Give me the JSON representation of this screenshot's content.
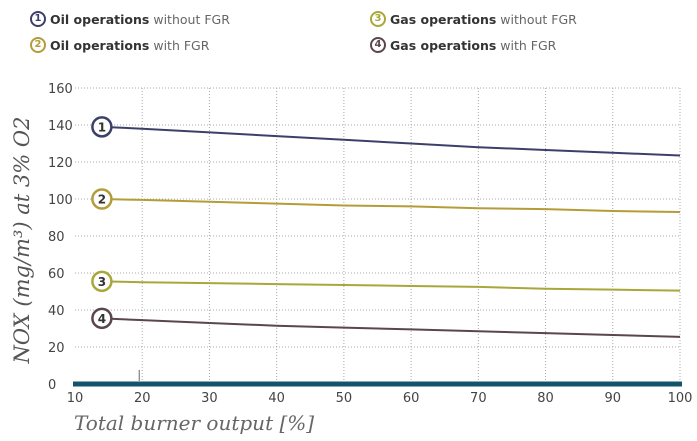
{
  "legend": {
    "items": [
      {
        "num": "1",
        "bold": "Oil operations",
        "rest": "without FGR",
        "color": "#3d3f6b"
      },
      {
        "num": "2",
        "bold": "Oil operations",
        "rest": "with FGR",
        "color": "#b59c3a"
      },
      {
        "num": "3",
        "bold": "Gas operations",
        "rest": "without FGR",
        "color": "#a9a73a"
      },
      {
        "num": "4",
        "bold": "Gas operations",
        "rest": "with FGR",
        "color": "#5a464c"
      }
    ]
  },
  "axes": {
    "ylabel": "NOX (mg/m³) at 3% O2",
    "xlabel": "Total burner output [%]"
  },
  "chart_data": {
    "type": "line",
    "title": "",
    "xlabel": "Total burner output [%]",
    "ylabel": "NOX (mg/m³) at 3% O2",
    "xlim": [
      10,
      100
    ],
    "ylim": [
      0,
      160
    ],
    "xticks": [
      "10",
      "20",
      "30",
      "40",
      "50",
      "60",
      "70",
      "80",
      "90",
      "100"
    ],
    "yticks": [
      "0",
      "20",
      "40",
      "60",
      "80",
      "100",
      "120",
      "140",
      "160"
    ],
    "grid": true,
    "legend_position": "top",
    "series": [
      {
        "name": "Oil operations without FGR",
        "label": "1",
        "color": "#3d3f6b",
        "x": [
          14,
          20,
          30,
          40,
          50,
          60,
          70,
          80,
          90,
          100
        ],
        "y": [
          139,
          138,
          136,
          134,
          132,
          130,
          128,
          126.5,
          125,
          123.5
        ]
      },
      {
        "name": "Oil operations with FGR",
        "label": "2",
        "color": "#b59c3a",
        "x": [
          14,
          20,
          30,
          40,
          50,
          60,
          70,
          80,
          90,
          100
        ],
        "y": [
          100,
          99.5,
          98.5,
          97.5,
          96.5,
          96,
          95,
          94.5,
          93.5,
          93
        ]
      },
      {
        "name": "Gas operations without FGR",
        "label": "3",
        "color": "#a9a73a",
        "x": [
          14,
          20,
          30,
          40,
          50,
          60,
          70,
          80,
          90,
          100
        ],
        "y": [
          55.5,
          55,
          54.5,
          54,
          53.5,
          53,
          52.5,
          51.5,
          51,
          50.5
        ]
      },
      {
        "name": "Gas operations with FGR",
        "label": "4",
        "color": "#5a464c",
        "x": [
          14,
          20,
          30,
          40,
          50,
          60,
          70,
          80,
          90,
          100
        ],
        "y": [
          35.5,
          34.5,
          33,
          31.5,
          30.5,
          29.5,
          28.5,
          27.5,
          26.5,
          25.5
        ]
      }
    ]
  }
}
